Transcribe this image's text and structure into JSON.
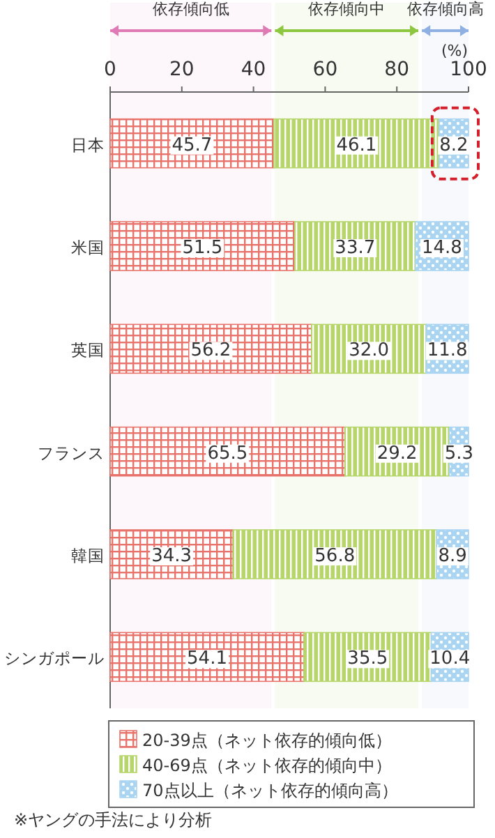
{
  "chart_data": {
    "type": "bar",
    "orientation": "horizontal",
    "stacked": true,
    "legend": "bottom",
    "grid": false,
    "categories": [
      "日本",
      "米国",
      "英国",
      "フランス",
      "韓国",
      "シンガポール"
    ],
    "series": [
      {
        "name": "20-39点（ネット依存的傾向低）",
        "color": "#e8736b",
        "values": [
          45.7,
          51.5,
          56.2,
          65.5,
          34.3,
          54.1
        ],
        "value_labels": [
          "45.7",
          "51.5",
          "56.2",
          "65.5",
          "34.3",
          "54.1"
        ]
      },
      {
        "name": "40-69点（ネット依存的傾向中）",
        "color": "#b6d66b",
        "values": [
          46.1,
          33.7,
          32.0,
          29.2,
          56.8,
          35.5
        ],
        "value_labels": [
          "46.1",
          "33.7",
          "32.0",
          "29.2",
          "56.8",
          "35.5"
        ]
      },
      {
        "name": "70点以上（ネット依存的傾向高）",
        "color": "#a9d5f2",
        "values": [
          8.2,
          14.8,
          11.8,
          5.3,
          8.9,
          10.4
        ],
        "value_labels": [
          "8.2",
          "14.8",
          "11.8",
          "5.3",
          "8.9",
          "10.4"
        ]
      }
    ],
    "xlim": [
      0,
      100
    ],
    "xticks": [
      0,
      20,
      40,
      60,
      80,
      100
    ],
    "xlabel": "(%)",
    "bands": [
      {
        "axis": "x",
        "from": 0,
        "to": 45,
        "label": "依存傾向低",
        "color": "#e07ab4"
      },
      {
        "axis": "x",
        "from": 46,
        "to": 86,
        "label": "依存傾向中",
        "color": "#8dc63f"
      },
      {
        "axis": "x",
        "from": 87,
        "to": 100,
        "label": "依存傾向高",
        "color": "#8fb0e2"
      }
    ],
    "annotations": [
      "※ヤングの手法により分析"
    ]
  }
}
